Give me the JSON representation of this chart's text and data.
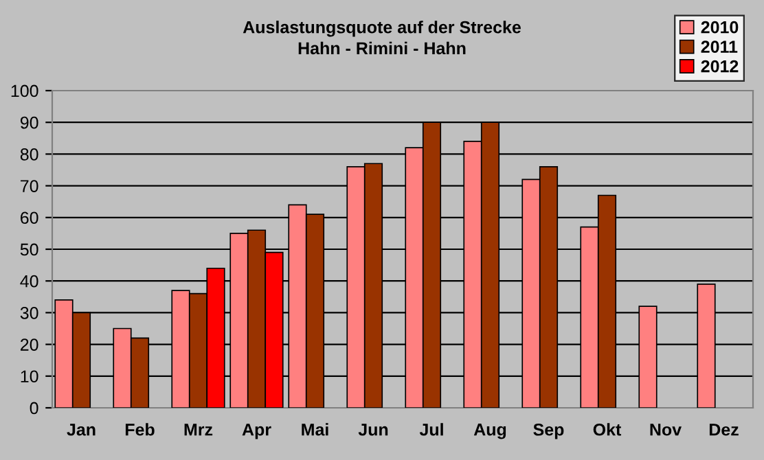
{
  "chart_data": {
    "type": "bar",
    "title": "Auslastungsquote auf der Strecke\nHahn - Rimini - Hahn",
    "categories": [
      "Jan",
      "Feb",
      "Mrz",
      "Apr",
      "Mai",
      "Jun",
      "Jul",
      "Aug",
      "Sep",
      "Okt",
      "Nov",
      "Dez"
    ],
    "series": [
      {
        "name": "2010",
        "color": "#ff8080",
        "values": [
          34,
          25,
          37,
          55,
          64,
          76,
          82,
          84,
          72,
          57,
          32,
          39
        ]
      },
      {
        "name": "2011",
        "color": "#993300",
        "values": [
          30,
          22,
          36,
          56,
          61,
          77,
          90,
          90,
          76,
          67,
          null,
          null
        ]
      },
      {
        "name": "2012",
        "color": "#ff0000",
        "values": [
          null,
          null,
          44,
          49,
          null,
          null,
          null,
          null,
          null,
          null,
          null,
          null
        ]
      }
    ],
    "ylim": [
      0,
      100
    ],
    "yticks": [
      0,
      10,
      20,
      30,
      40,
      50,
      60,
      70,
      80,
      90,
      100
    ],
    "grid": "y",
    "legend": "top right"
  }
}
